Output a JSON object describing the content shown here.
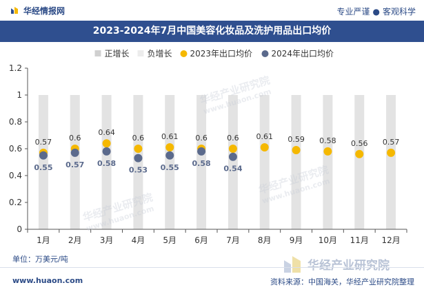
{
  "header": {
    "brand": "华经情报网",
    "tagline_left": "专业严谨",
    "tagline_right": "客观科学"
  },
  "title": "2023-2024年7月中国美容化妆品及洗护用品出口均价",
  "unit_label": "单位：万美元/吨",
  "footer": {
    "url": "www.huaon.com",
    "source": "资料来源：中国海关，华经产业研究院整理",
    "logo_text": "华经产业研究院"
  },
  "watermark": {
    "text": "华经产业研究院",
    "url": "www.huaon.com"
  },
  "colors": {
    "header_blue": "#2f4f8f",
    "series_2023": "#f5b800",
    "series_2024": "#5b6a8c",
    "positive_bar": "#e3e3e3",
    "negative_bar": "#f3f3f3"
  },
  "chart_data": {
    "type": "bar",
    "categories": [
      "1月",
      "2月",
      "3月",
      "4月",
      "5月",
      "6月",
      "7月",
      "8月",
      "9月",
      "10月",
      "11月",
      "12月"
    ],
    "ylim": [
      0,
      1.2
    ],
    "yticks": [
      0,
      0.2,
      0.4,
      0.6,
      0.8,
      1,
      1.2
    ],
    "ytick_labels": [
      "0",
      "0.2",
      "0.4",
      "0.6",
      "0.8",
      "1",
      "1.2"
    ],
    "grid": false,
    "legend_position": "top",
    "legend": [
      {
        "name": "正增长",
        "marker": "square",
        "color": "#d0d0d0"
      },
      {
        "name": "负增长",
        "marker": "square",
        "color": "#ececec"
      },
      {
        "name": "2023年出口均价",
        "marker": "circle",
        "color": "#f5b800"
      },
      {
        "name": "2024年出口均价",
        "marker": "circle",
        "color": "#5b6a8c"
      }
    ],
    "background_bars": [
      1,
      1,
      1,
      1,
      1,
      1,
      1,
      1,
      1,
      1,
      1,
      1
    ],
    "series": [
      {
        "name": "2023年出口均价",
        "type": "scatter",
        "color": "#f5b800",
        "values": [
          0.57,
          0.6,
          0.64,
          0.6,
          0.61,
          0.6,
          0.6,
          0.61,
          0.59,
          0.58,
          0.56,
          0.57
        ],
        "labels": [
          "0.57",
          "0.6",
          "0.64",
          "0.6",
          "0.61",
          "0.6",
          "0.6",
          "0.61",
          "0.59",
          "0.58",
          "0.56",
          "0.57"
        ]
      },
      {
        "name": "2024年出口均价",
        "type": "scatter",
        "color": "#5b6a8c",
        "values": [
          0.55,
          0.57,
          0.58,
          0.53,
          0.55,
          0.58,
          0.54,
          null,
          null,
          null,
          null,
          null
        ],
        "labels": [
          "0.55",
          "0.57",
          "0.58",
          "0.53",
          "0.55",
          "0.58",
          "0.54",
          null,
          null,
          null,
          null,
          null
        ]
      }
    ]
  }
}
